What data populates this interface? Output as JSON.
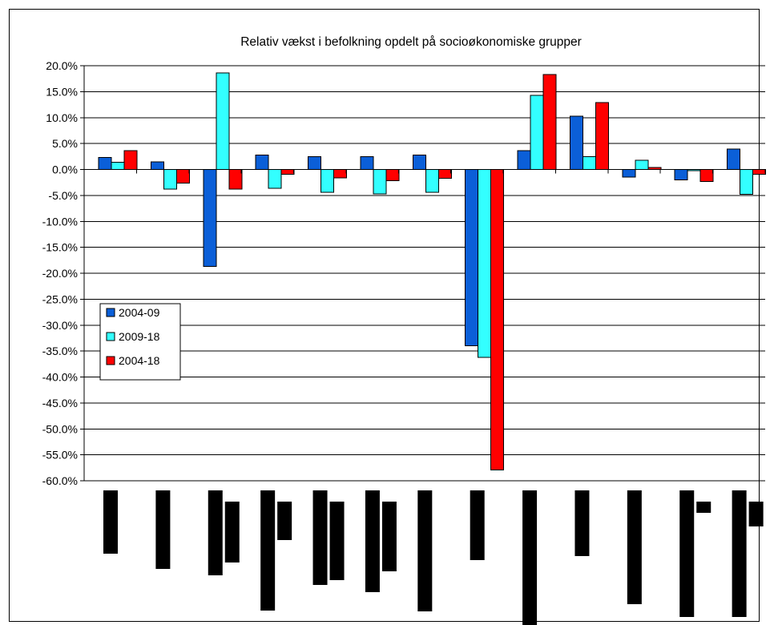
{
  "chart_data": {
    "type": "bar",
    "title": "Relativ vækst i befolkning opdelt på socioøkonomiske grupper",
    "xlabel": "",
    "ylabel": "",
    "ylim": [
      -60,
      20
    ],
    "ytick_step": 5,
    "ytick_labels": [
      "20.0%",
      "15.0%",
      "10.0%",
      "5.0%",
      "0.0%",
      "-5.0%",
      "-10.0%",
      "-15.0%",
      "-20.0%",
      "-25.0%",
      "-30.0%",
      "-35.0%",
      "-40.0%",
      "-45.0%",
      "-50.0%",
      "-55.0%",
      "-60.0%"
    ],
    "grid": true,
    "legend_position": "middle-left",
    "categories": [
      "",
      "",
      "",
      "",
      "",
      "",
      "",
      "",
      "",
      "",
      "",
      "",
      ""
    ],
    "series": [
      {
        "name": "2004-09",
        "color": "#0b5fd8",
        "values": [
          2.3,
          1.5,
          -18.7,
          2.8,
          2.5,
          2.5,
          2.8,
          -34.0,
          3.6,
          10.3,
          -1.5,
          -2.0,
          3.9
        ]
      },
      {
        "name": "2009-18",
        "color": "#33ffff",
        "values": [
          1.4,
          -3.8,
          18.6,
          -3.6,
          -4.4,
          -4.7,
          -4.4,
          -36.2,
          14.3,
          2.5,
          1.8,
          -0.2,
          -4.8
        ]
      },
      {
        "name": "2004-18",
        "color": "#ff0000",
        "values": [
          3.6,
          -2.6,
          -3.8,
          -0.9,
          -1.6,
          -2.2,
          -1.7,
          -57.9,
          18.3,
          12.9,
          0.4,
          -2.3,
          -0.9
        ]
      }
    ],
    "redacted_label_heights": [
      [
        79,
        0
      ],
      [
        98,
        0
      ],
      [
        106,
        76
      ],
      [
        150,
        48
      ],
      [
        118,
        98
      ],
      [
        127,
        87
      ],
      [
        151,
        0
      ],
      [
        87,
        0
      ],
      [
        170,
        0
      ],
      [
        82,
        0
      ],
      [
        142,
        0
      ],
      [
        158,
        14
      ],
      [
        158,
        31
      ]
    ]
  }
}
